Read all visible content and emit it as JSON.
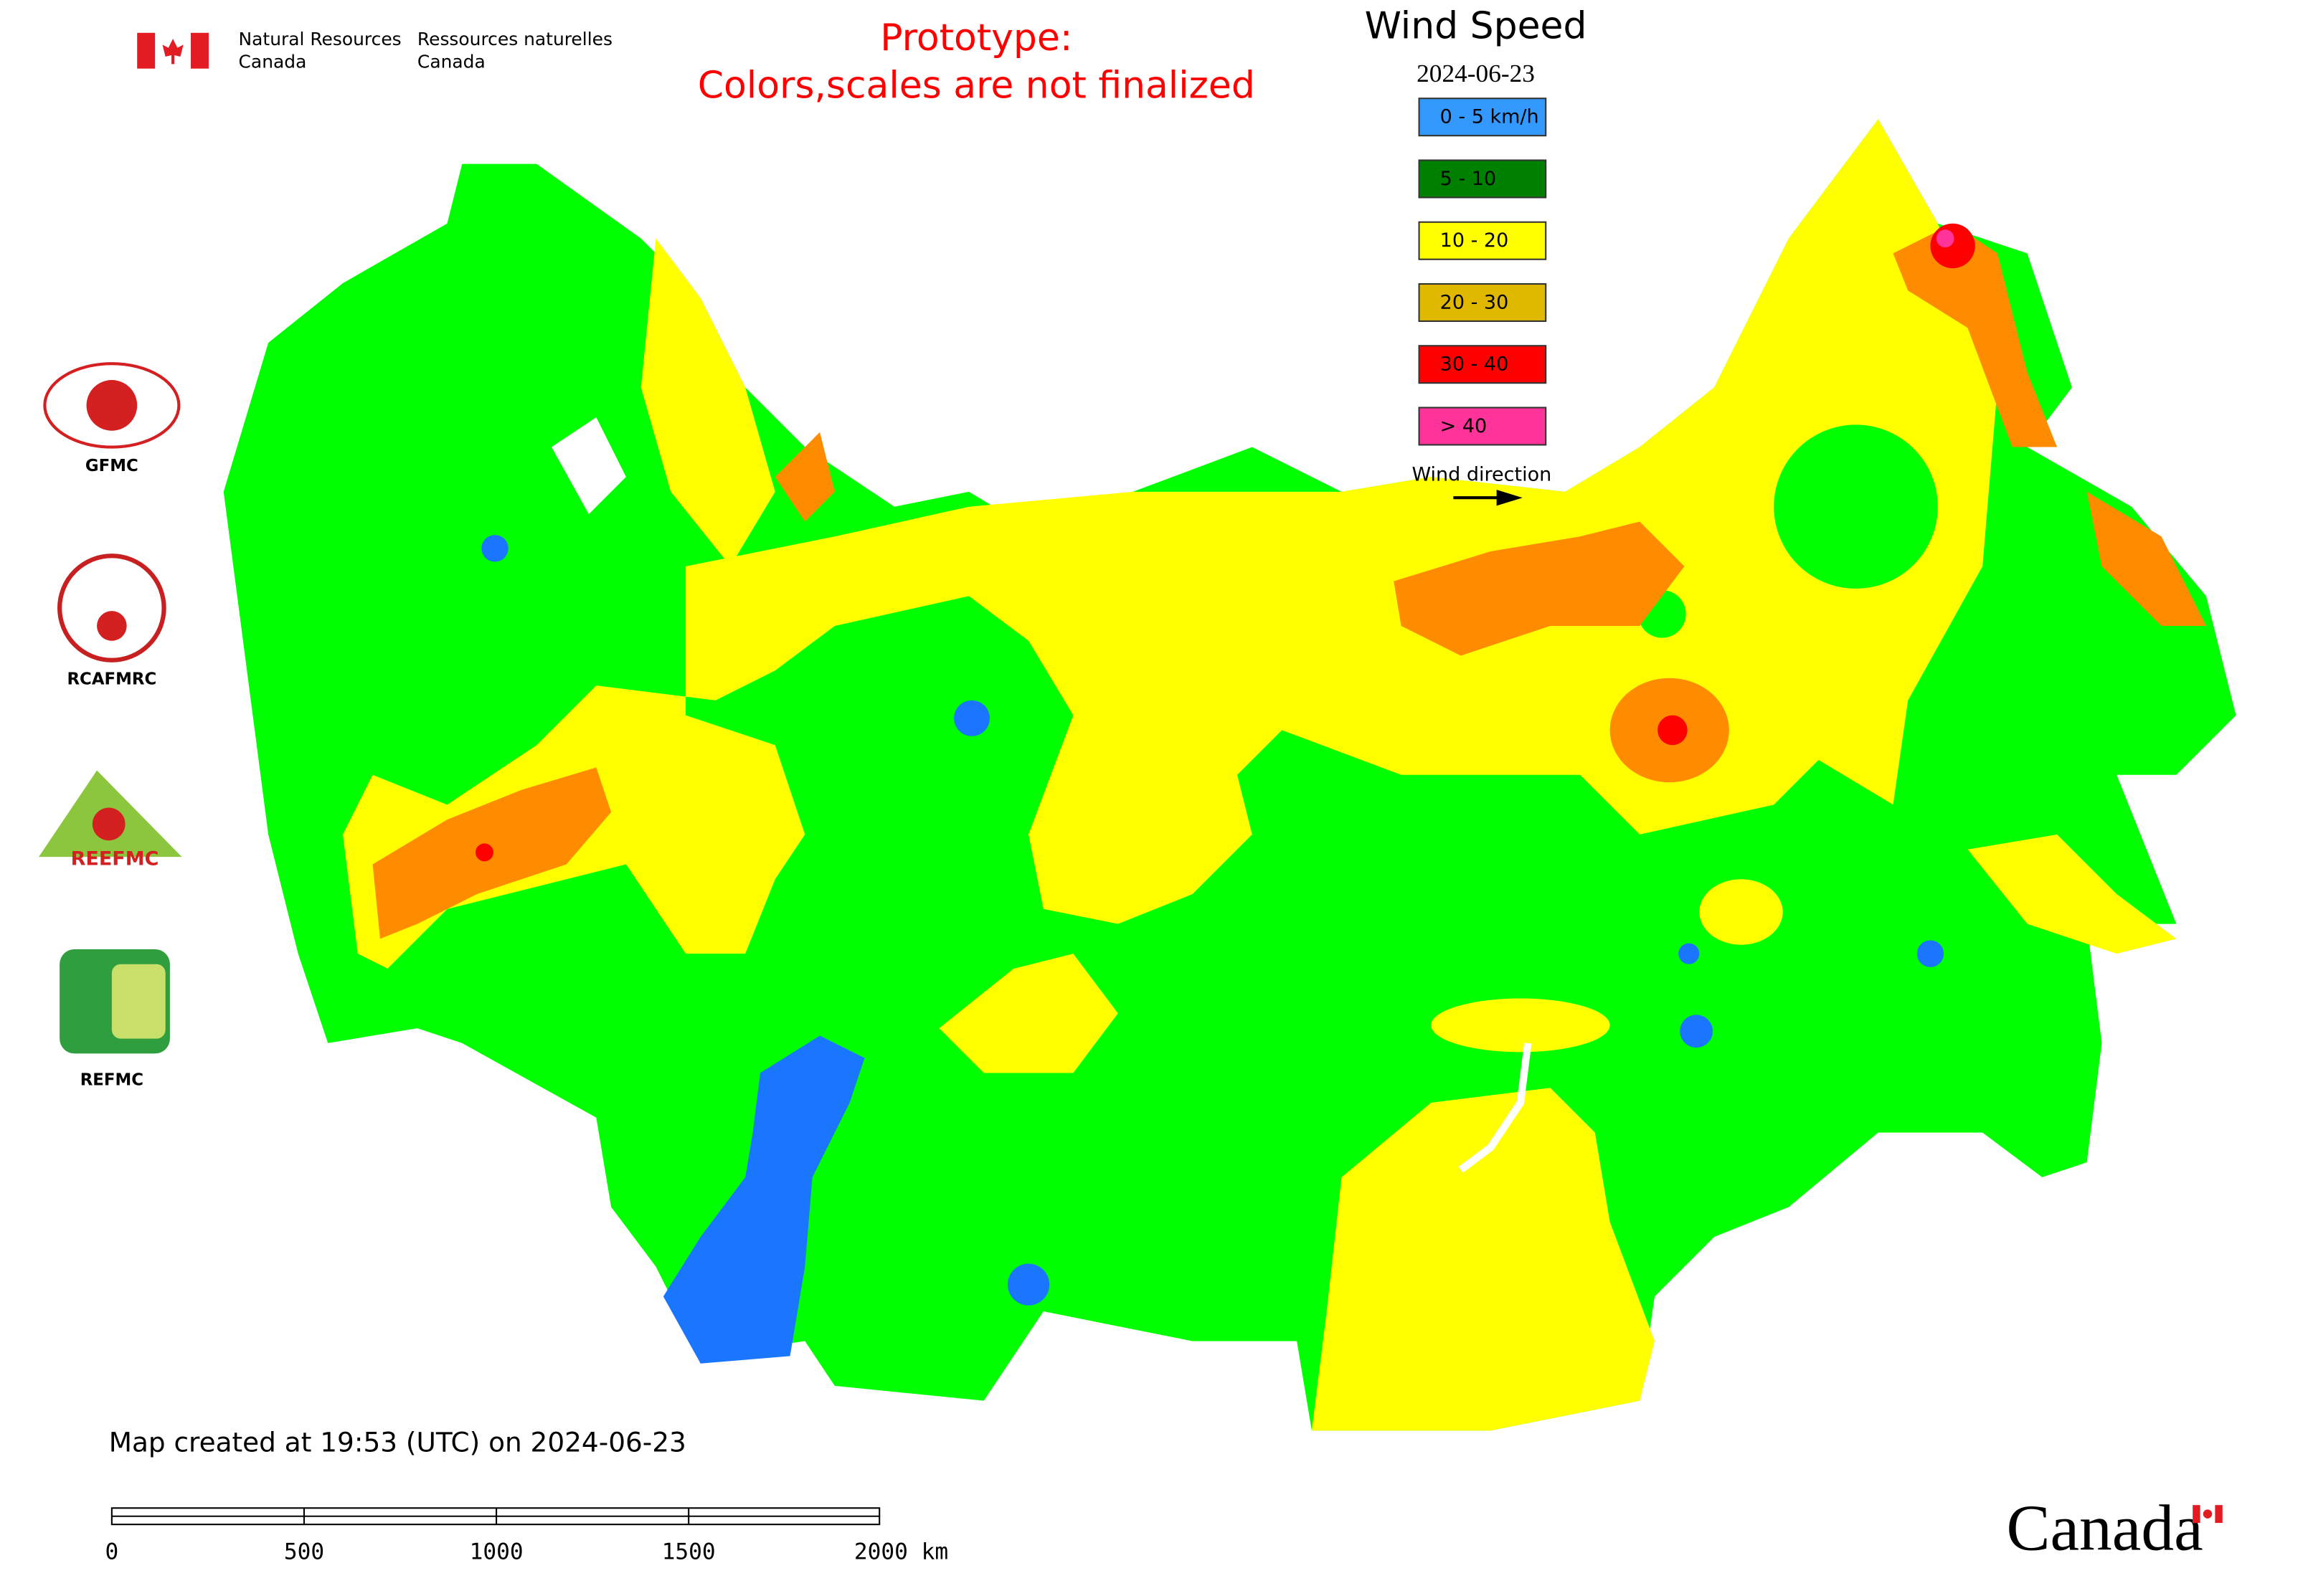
{
  "header": {
    "agency_en_line1": "Natural Resources",
    "agency_en_line2": "Canada",
    "agency_fr_line1": "Ressources naturelles",
    "agency_fr_line2": "Canada"
  },
  "notice": {
    "line1": "Prototype:",
    "line2": "Colors,scales are not finalized"
  },
  "legend": {
    "title": "Wind Speed",
    "date": "2024-06-23",
    "items": [
      {
        "label": "0 - 5 km/h",
        "color": "#3399ff"
      },
      {
        "label": "5 - 10",
        "color": "#008000"
      },
      {
        "label": "10 - 20",
        "color": "#ffff00"
      },
      {
        "label": "20 - 30",
        "color": "#e0b800"
      },
      {
        "label": "30 - 40",
        "color": "#ff0000"
      },
      {
        "label": "> 40",
        "color": "#ff3399"
      }
    ],
    "direction_label": "Wind direction"
  },
  "logos": [
    {
      "label": "GFMC"
    },
    {
      "label": "RCAFMRC"
    },
    {
      "label": "REEFMC"
    },
    {
      "label": "REFMC"
    }
  ],
  "footer": {
    "created": "Map created at 19:53 (UTC) on 2024-06-23",
    "scale_labels": [
      "0",
      "500",
      "1000",
      "1500",
      "2000 km"
    ],
    "wordmark": "Canada"
  }
}
